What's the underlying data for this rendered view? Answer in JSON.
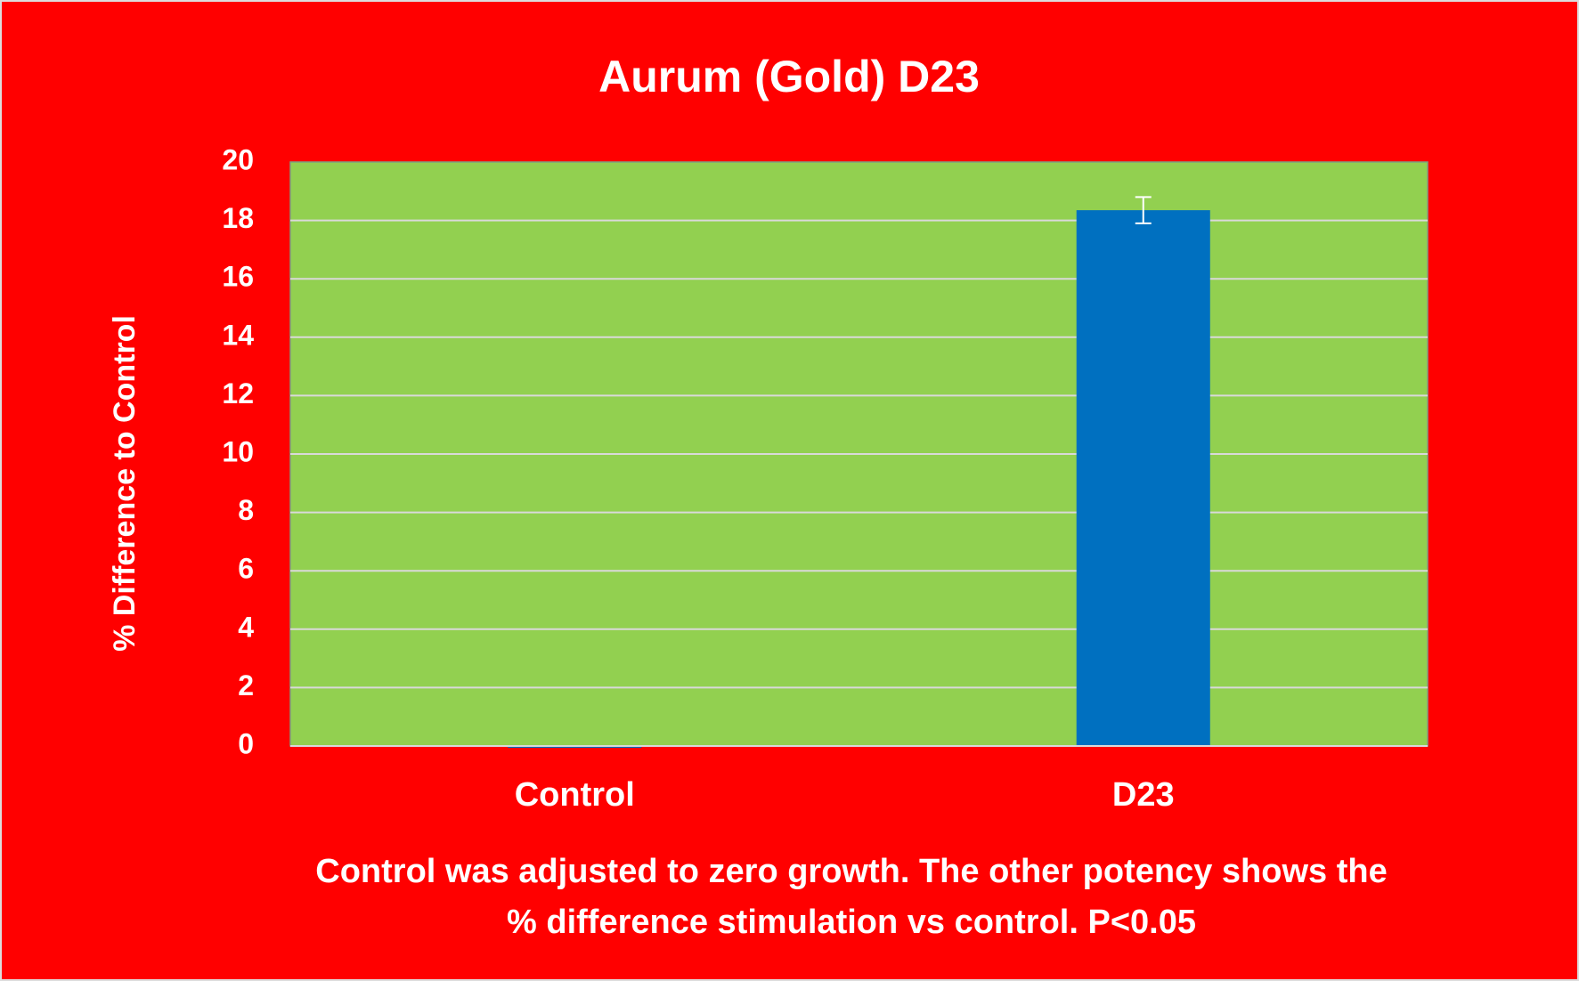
{
  "chart_data": {
    "type": "bar",
    "title": "Aurum (Gold) D23",
    "y_label": "% Difference to Control",
    "categories": [
      "Control",
      "D23"
    ],
    "values": [
      0,
      18.35
    ],
    "errors": [
      0,
      0.45
    ],
    "color": "#0070c0",
    "background_color": "#ff0000",
    "plot_color": "#92d050",
    "ylim": [
      0,
      20
    ],
    "yticks": [
      0,
      2,
      4,
      6,
      8,
      10,
      12,
      14,
      16,
      18,
      20
    ],
    "grid": true,
    "annotations": [
      "Control was adjusted to zero growth. The other potency shows the",
      "% difference stimulation vs control. P<0.05"
    ]
  }
}
